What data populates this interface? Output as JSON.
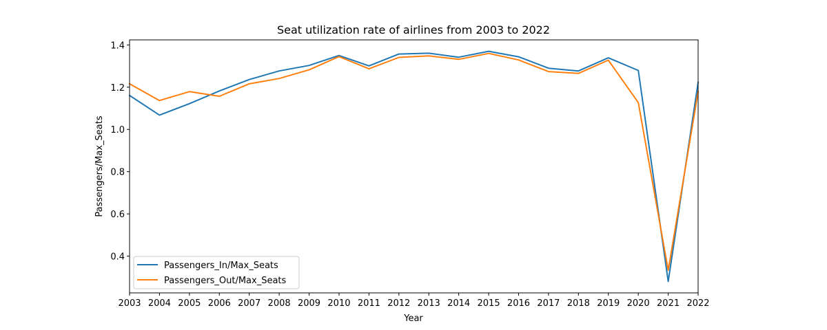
{
  "chart_data": {
    "type": "line",
    "title": "Seat utilization rate of airlines from 2003 to 2022",
    "xlabel": "Year",
    "ylabel": "Passengers/Max_Seats",
    "x": [
      "2003",
      "2004",
      "2005",
      "2006",
      "2007",
      "2008",
      "2009",
      "2010",
      "2011",
      "2012",
      "2013",
      "2014",
      "2015",
      "2016",
      "2017",
      "2018",
      "2019",
      "2020",
      "2021",
      "2022"
    ],
    "yticks": [
      "0.4",
      "0.6",
      "0.8",
      "1.0",
      "1.2",
      "1.4"
    ],
    "ylim": [
      0.226,
      1.424
    ],
    "grid": false,
    "legend_position": "lower-left",
    "series": [
      {
        "name": "Passengers_In/Max_Seats",
        "color": "#1f77b4",
        "values": [
          1.161,
          1.068,
          1.122,
          1.182,
          1.236,
          1.277,
          1.303,
          1.35,
          1.301,
          1.357,
          1.361,
          1.342,
          1.37,
          1.344,
          1.29,
          1.277,
          1.339,
          1.279,
          0.28,
          1.223
        ]
      },
      {
        "name": "Passengers_Out/Max_Seats",
        "color": "#ff7f0e",
        "values": [
          1.216,
          1.137,
          1.179,
          1.157,
          1.216,
          1.241,
          1.282,
          1.345,
          1.287,
          1.341,
          1.348,
          1.332,
          1.36,
          1.329,
          1.274,
          1.265,
          1.328,
          1.127,
          0.333,
          1.179
        ]
      }
    ]
  }
}
